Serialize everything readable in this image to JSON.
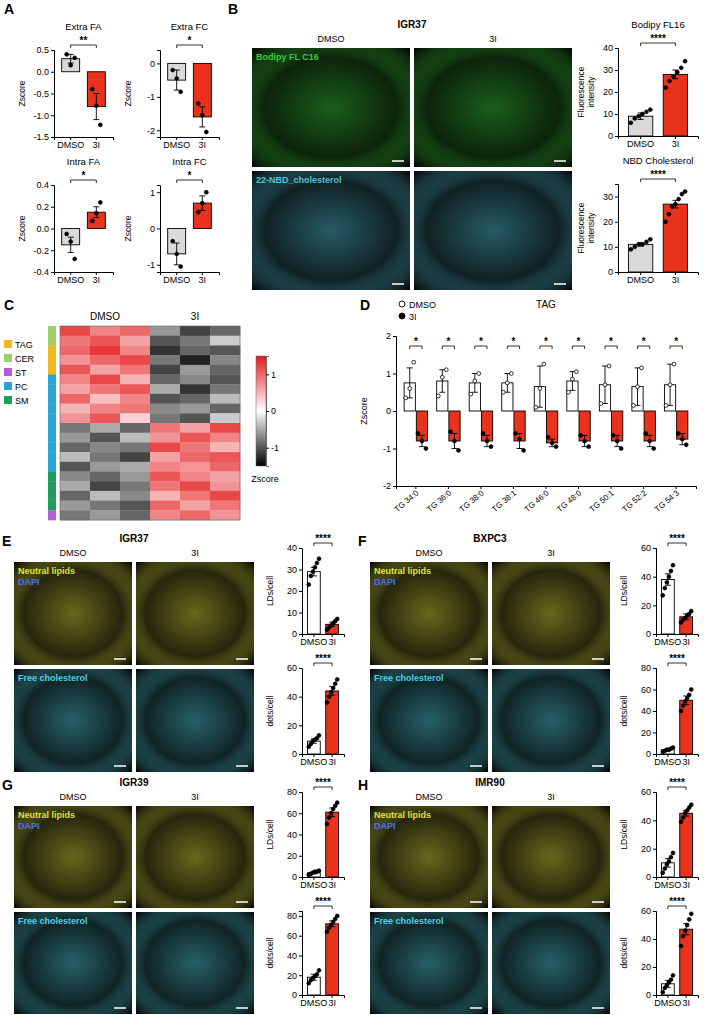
{
  "panel_letters": [
    "A",
    "B",
    "C",
    "D",
    "E",
    "F",
    "G",
    "H"
  ],
  "chart_data": [
    {
      "type": "bar",
      "title": "Extra FA",
      "y_label": "Zscore",
      "categories": [
        "DMSO",
        "3I"
      ],
      "values": [
        0.3,
        -0.8
      ],
      "errors": [
        0.1,
        0.3
      ],
      "points": [
        [
          0.4,
          0.15,
          0.32
        ],
        [
          -0.4,
          -0.78,
          -1.22
        ]
      ],
      "colors": [
        "#d9d9d9",
        "#e8321c"
      ],
      "ylim": [
        -1.5,
        0.5
      ],
      "yticks": [
        -1.5,
        {
          "value": -1,
          "label": "-1.0"
        },
        -0.5,
        {
          "value": 0,
          "label": "0.0"
        },
        0.5
      ],
      "annotation": "**"
    },
    {
      "type": "bar",
      "title": "Extra FC",
      "y_label": "Zscore",
      "categories": [
        "DMSO",
        "3I"
      ],
      "values": [
        -0.5,
        -1.6
      ],
      "errors": [
        0.3,
        0.3
      ],
      "points": [
        [
          -0.2,
          -0.45,
          -0.85
        ],
        [
          -1.2,
          -1.55,
          -2.05
        ]
      ],
      "colors": [
        "#d9d9d9",
        "#e8321c"
      ],
      "ylim": [
        -2.2,
        0.4
      ],
      "yticks": [
        -2,
        -1,
        0
      ],
      "annotation": "*"
    },
    {
      "type": "bar",
      "title": "Intra FA",
      "y_label": "Zscore",
      "categories": [
        "DMSO",
        "3I"
      ],
      "values": [
        -0.15,
        0.15
      ],
      "errors": [
        0.07,
        0.05
      ],
      "points": [
        [
          -0.05,
          -0.12,
          -0.28
        ],
        [
          0.07,
          0.14,
          0.24
        ]
      ],
      "colors": [
        "#d9d9d9",
        "#e8321c"
      ],
      "ylim": [
        -0.4,
        0.4
      ],
      "yticks": [
        -0.4,
        -0.2,
        {
          "value": 0,
          "label": "0.0"
        },
        0.2,
        0.4
      ],
      "annotation": "*"
    },
    {
      "type": "bar",
      "title": "Intra FC",
      "y_label": "Zscore",
      "categories": [
        "DMSO",
        "3I"
      ],
      "values": [
        -0.7,
        0.7
      ],
      "errors": [
        0.3,
        0.2
      ],
      "points": [
        [
          -0.35,
          -0.7,
          -1.05
        ],
        [
          0.45,
          0.7,
          1.0
        ]
      ],
      "colors": [
        "#d9d9d9",
        "#e8321c"
      ],
      "ylim": [
        -1.2,
        1.2
      ],
      "yticks": [
        -1,
        0,
        1
      ],
      "annotation": "*"
    },
    {
      "type": "bar",
      "title": "Bodipy FL16",
      "y_label": "Fluorescence intensity",
      "categories": [
        "DMSO",
        "3I"
      ],
      "values": [
        9,
        28
      ],
      "errors": [
        1.5,
        2
      ],
      "points": [
        [
          6,
          8,
          9,
          10,
          11,
          12
        ],
        [
          22,
          25,
          27,
          29,
          31,
          34
        ]
      ],
      "colors": [
        "#d9d9d9",
        "#e8321c"
      ],
      "ylim": [
        0,
        40
      ],
      "yticks": [
        0,
        10,
        20,
        30,
        40
      ],
      "annotation": "****"
    },
    {
      "type": "bar",
      "title": "NBD Cholesterol",
      "y_label": "Fluorescence intensity",
      "categories": [
        "DMSO",
        "3I"
      ],
      "values": [
        11,
        27
      ],
      "errors": [
        0.7,
        1.5
      ],
      "points": [
        [
          9,
          10,
          11,
          11,
          12,
          13
        ],
        [
          20,
          23,
          26,
          27,
          29,
          31,
          32
        ]
      ],
      "colors": [
        "#d9d9d9",
        "#e8321c"
      ],
      "ylim": [
        0,
        35
      ],
      "yticks": [
        0,
        10,
        20,
        30
      ],
      "annotation": "****"
    },
    {
      "type": "heatmap",
      "column_groups": [
        "DMSO",
        "3I"
      ],
      "groups": [
        {
          "name": "TAG",
          "color": "#f0b91e"
        },
        {
          "name": "CER",
          "color": "#9bd06a"
        },
        {
          "name": "ST",
          "color": "#b05fd6"
        },
        {
          "name": "PC",
          "color": "#2aa3d9"
        },
        {
          "name": "SM",
          "color": "#1f9e57"
        }
      ],
      "row_groups": [
        "CER",
        "CER",
        "TAG",
        "TAG",
        "TAG",
        "PC",
        "PC",
        "PC",
        "PC",
        "PC",
        "PC",
        "PC",
        "PC",
        "PC",
        "PC",
        "SM",
        "SM",
        "SM",
        "SM",
        "ST"
      ],
      "values": [
        [
          1.2,
          0.8,
          1.0,
          -0.6,
          -1.1,
          -0.9
        ],
        [
          0.9,
          1.1,
          0.6,
          -1.0,
          -0.8,
          -0.3
        ],
        [
          1.0,
          1.3,
          0.8,
          -1.2,
          -0.9,
          -1.0
        ],
        [
          0.7,
          1.0,
          1.2,
          -0.8,
          -1.3,
          -0.7
        ],
        [
          1.1,
          0.6,
          0.9,
          -1.1,
          -0.6,
          -0.9
        ],
        [
          0.8,
          1.2,
          0.5,
          -0.9,
          -0.7,
          -1.0
        ],
        [
          0.6,
          0.9,
          1.1,
          -0.5,
          -1.2,
          -0.8
        ],
        [
          1.0,
          0.4,
          0.8,
          -1.0,
          -0.9,
          -0.4
        ],
        [
          0.5,
          0.8,
          0.9,
          -0.7,
          -0.6,
          -0.9
        ],
        [
          0.7,
          1.1,
          0.3,
          -0.8,
          -1.0,
          -0.3
        ],
        [
          -0.8,
          -0.5,
          -0.9,
          0.9,
          0.6,
          1.2
        ],
        [
          -0.6,
          -1.0,
          -0.4,
          0.7,
          1.1,
          0.8
        ],
        [
          -0.9,
          -0.7,
          -0.8,
          1.2,
          0.9,
          0.5
        ],
        [
          -0.4,
          -0.8,
          -1.1,
          0.6,
          1.0,
          1.1
        ],
        [
          -1.0,
          -0.6,
          -0.5,
          0.8,
          0.7,
          1.0
        ],
        [
          -0.7,
          -0.9,
          -0.6,
          1.1,
          0.8,
          0.6
        ],
        [
          -0.5,
          -1.1,
          -0.8,
          0.9,
          1.2,
          0.7
        ],
        [
          -0.9,
          -0.4,
          -0.7,
          0.5,
          0.9,
          1.2
        ],
        [
          -0.6,
          -0.8,
          -1.0,
          1.0,
          0.6,
          0.9
        ],
        [
          -0.8,
          -0.6,
          -0.9,
          0.8,
          1.0,
          0.7
        ]
      ],
      "zlim": [
        -1.5,
        1.5
      ],
      "zticks": [
        1,
        0,
        -1
      ],
      "colorbar_title": "Zscore"
    },
    {
      "type": "bar",
      "title": "TAG",
      "y_label": "Zscore",
      "legend": "top-left",
      "categories": [
        "TG 34:0",
        "TG 36:0",
        "TG 38:0",
        "TG 38:1",
        "TG 46:0",
        "TG 48:0",
        "TG 50:1",
        "TG 52:2",
        "TG 54:3"
      ],
      "series": [
        {
          "name": "DMSO",
          "color": "#ffffff",
          "marker": "open-circle",
          "values": [
            0.75,
            0.8,
            0.75,
            0.75,
            0.65,
            0.8,
            0.7,
            0.65,
            0.7
          ],
          "errors": [
            0.4,
            0.3,
            0.25,
            0.25,
            0.55,
            0.25,
            0.5,
            0.5,
            0.55
          ],
          "points": [
            [
              0.35,
              0.6,
              1.3
            ],
            [
              0.4,
              0.9,
              1.1
            ],
            [
              0.45,
              0.8,
              1.0
            ],
            [
              0.5,
              0.75,
              1.0
            ],
            [
              0.1,
              0.6,
              1.25
            ],
            [
              0.5,
              0.85,
              1.05
            ],
            [
              0.2,
              0.7,
              1.2
            ],
            [
              0.15,
              0.65,
              1.15
            ],
            [
              0.15,
              0.7,
              1.25
            ]
          ]
        },
        {
          "name": "3I",
          "color": "#e8321c",
          "marker": "circle",
          "values": [
            -0.8,
            -0.8,
            -0.8,
            -0.8,
            -0.85,
            -0.8,
            -0.8,
            -0.8,
            -0.75
          ],
          "errors": [
            0.15,
            0.2,
            0.15,
            0.2,
            0.1,
            0.15,
            0.15,
            0.15,
            0.15
          ],
          "points": [
            [
              -0.6,
              -0.8,
              -1.0
            ],
            [
              -0.55,
              -0.8,
              -1.05
            ],
            [
              -0.6,
              -0.8,
              -0.95
            ],
            [
              -0.6,
              -0.75,
              -1.05
            ],
            [
              -0.7,
              -0.85,
              -0.95
            ],
            [
              -0.65,
              -0.8,
              -0.95
            ],
            [
              -0.65,
              -0.8,
              -1.0
            ],
            [
              -0.6,
              -0.8,
              -1.0
            ],
            [
              -0.6,
              -0.75,
              -0.9
            ]
          ]
        }
      ],
      "ylim": [
        -2,
        2
      ],
      "yticks": [
        -2,
        -1,
        0,
        1,
        2
      ],
      "annotations": [
        "*",
        "*",
        "*",
        "*",
        "*",
        "*",
        "*",
        "*",
        "*"
      ]
    },
    {
      "type": "bar",
      "y_label": "LDs/cell",
      "categories": [
        "DMSO",
        "3I"
      ],
      "values": [
        29,
        4.5
      ],
      "errors": [
        2,
        1
      ],
      "points": [
        [
          23,
          27,
          29,
          31,
          33,
          35
        ],
        [
          2,
          3,
          4,
          5,
          6,
          7
        ]
      ],
      "colors": [
        "#ffffff",
        "#e8321c"
      ],
      "ylim": [
        0,
        40
      ],
      "yticks": [
        0,
        10,
        20,
        30,
        40
      ],
      "annotation": "****"
    },
    {
      "type": "bar",
      "y_label": "dots/cell",
      "categories": [
        "DMSO",
        "3I"
      ],
      "values": [
        9,
        44
      ],
      "errors": [
        1.5,
        3
      ],
      "points": [
        [
          5,
          7,
          9,
          10,
          11,
          13
        ],
        [
          36,
          40,
          43,
          46,
          49,
          52
        ]
      ],
      "colors": [
        "#ffffff",
        "#e8321c"
      ],
      "ylim": [
        0,
        60
      ],
      "yticks": [
        0,
        20,
        40,
        60
      ],
      "annotation": "****"
    },
    {
      "type": "bar",
      "y_label": "LDs/cell",
      "categories": [
        "DMSO",
        "3I"
      ],
      "values": [
        38,
        12
      ],
      "errors": [
        4,
        2
      ],
      "points": [
        [
          27,
          32,
          36,
          40,
          44,
          48
        ],
        [
          8,
          10,
          11,
          13,
          14,
          16
        ]
      ],
      "colors": [
        "#ffffff",
        "#e8321c"
      ],
      "ylim": [
        0,
        60
      ],
      "yticks": [
        0,
        20,
        40,
        60
      ],
      "annotation": "****"
    },
    {
      "type": "bar",
      "y_label": "dots/cell",
      "categories": [
        "DMSO",
        "3I"
      ],
      "values": [
        4,
        50
      ],
      "errors": [
        1,
        4
      ],
      "points": [
        [
          2,
          3,
          4,
          4,
          5,
          6
        ],
        [
          40,
          45,
          49,
          52,
          55,
          60
        ]
      ],
      "colors": [
        "#ffffff",
        "#e8321c"
      ],
      "ylim": [
        0,
        80
      ],
      "yticks": [
        0,
        20,
        40,
        60,
        80
      ],
      "annotation": "****"
    },
    {
      "type": "bar",
      "y_label": "LDs/cell",
      "categories": [
        "DMSO",
        "3I"
      ],
      "values": [
        4,
        61
      ],
      "errors": [
        1,
        4
      ],
      "points": [
        [
          2,
          3,
          4,
          5,
          5,
          6
        ],
        [
          50,
          56,
          60,
          64,
          67,
          70
        ]
      ],
      "colors": [
        "#ffffff",
        "#e8321c"
      ],
      "ylim": [
        0,
        80
      ],
      "yticks": [
        0,
        20,
        40,
        60,
        80
      ],
      "annotation": "****"
    },
    {
      "type": "bar",
      "y_label": "dots/cell",
      "categories": [
        "DMSO",
        "3I"
      ],
      "values": [
        18,
        72
      ],
      "errors": [
        3,
        3
      ],
      "points": [
        [
          12,
          15,
          17,
          19,
          21,
          25
        ],
        [
          64,
          68,
          71,
          74,
          77,
          80
        ]
      ],
      "colors": [
        "#ffffff",
        "#e8321c"
      ],
      "ylim": [
        0,
        85
      ],
      "yticks": [
        0,
        20,
        40,
        60,
        80
      ],
      "annotation": "****"
    },
    {
      "type": "bar",
      "y_label": "LDs/cell",
      "categories": [
        "DMSO",
        "3I"
      ],
      "values": [
        10,
        45
      ],
      "errors": [
        3,
        2
      ],
      "points": [
        [
          3,
          6,
          9,
          11,
          14,
          17
        ],
        [
          39,
          42,
          45,
          47,
          49,
          51
        ]
      ],
      "colors": [
        "#ffffff",
        "#e8321c"
      ],
      "ylim": [
        0,
        60
      ],
      "yticks": [
        0,
        20,
        40,
        60
      ],
      "annotation": "****"
    },
    {
      "type": "bar",
      "y_label": "dots/cell",
      "categories": [
        "DMSO",
        "3I"
      ],
      "values": [
        8,
        47
      ],
      "errors": [
        2.5,
        4
      ],
      "points": [
        [
          2,
          5,
          7,
          9,
          11,
          14
        ],
        [
          35,
          42,
          46,
          50,
          54,
          58
        ]
      ],
      "colors": [
        "#ffffff",
        "#e8321c"
      ],
      "ylim": [
        0,
        60
      ],
      "yticks": [
        0,
        20,
        40,
        60
      ],
      "annotation": "****"
    }
  ],
  "images": [
    {
      "title": "IGR37",
      "columns": [
        "DMSO",
        "3I"
      ],
      "rows": [
        {
          "labels": [
            "Bodipy FL C16"
          ],
          "colors": [
            "#33cc33"
          ]
        },
        {
          "labels": [
            "22-NBD_cholesterol"
          ],
          "colors": [
            "#4fc3d9"
          ]
        }
      ]
    },
    {
      "title": "IGR37",
      "columns": [
        "DMSO",
        "3I"
      ],
      "rows": [
        {
          "labels": [
            "Neutral lipids",
            "DAPI"
          ],
          "colors": [
            "#e0e03a",
            "#4a6cff"
          ]
        },
        {
          "labels": [
            "Free cholesterol"
          ],
          "colors": [
            "#4fd0e0"
          ]
        }
      ]
    },
    {
      "title": "BXPC3",
      "columns": [
        "DMSO",
        "3I"
      ],
      "rows": [
        {
          "labels": [
            "Neutral lipids",
            "DAPI"
          ],
          "colors": [
            "#e0e03a",
            "#4a6cff"
          ]
        },
        {
          "labels": [
            "Free cholesterol"
          ],
          "colors": [
            "#4fd0e0"
          ]
        }
      ]
    },
    {
      "title": "IGR39",
      "columns": [
        "DMSO",
        "3I"
      ],
      "rows": [
        {
          "labels": [
            "Neutral lipids",
            "DAPI"
          ],
          "colors": [
            "#e0e03a",
            "#4a6cff"
          ]
        },
        {
          "labels": [
            "Free cholesterol"
          ],
          "colors": [
            "#4fd0e0"
          ]
        }
      ]
    },
    {
      "title": "IMR90",
      "columns": [
        "DMSO",
        "3I"
      ],
      "rows": [
        {
          "labels": [
            "Neutral lipids",
            "DAPI"
          ],
          "colors": [
            "#e0e03a",
            "#4a6cff"
          ]
        },
        {
          "labels": [
            "Free cholesterol"
          ],
          "colors": [
            "#4fd0e0"
          ]
        }
      ]
    }
  ]
}
